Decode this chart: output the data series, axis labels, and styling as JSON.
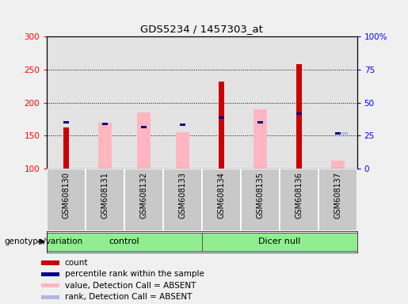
{
  "title": "GDS5234 / 1457303_at",
  "samples": [
    "GSM608130",
    "GSM608131",
    "GSM608132",
    "GSM608133",
    "GSM608134",
    "GSM608135",
    "GSM608136",
    "GSM608137"
  ],
  "ylim_left": [
    100,
    300
  ],
  "ylim_right": [
    0,
    100
  ],
  "yticks_left": [
    100,
    150,
    200,
    250,
    300
  ],
  "yticks_right": [
    0,
    25,
    50,
    75,
    100
  ],
  "ytick_labels_right": [
    "0",
    "25",
    "50",
    "75",
    "100%"
  ],
  "red_bars": [
    163,
    100,
    100,
    100,
    232,
    100,
    258,
    100
  ],
  "pink_bars_top": [
    100,
    170,
    185,
    155,
    100,
    190,
    100,
    112
  ],
  "blue_squares_val": [
    170,
    168,
    163,
    167,
    177,
    170,
    183,
    153
  ],
  "blue_sq_present": [
    true,
    true,
    true,
    true,
    true,
    true,
    true,
    true
  ],
  "lavender_val": [
    null,
    null,
    null,
    null,
    null,
    null,
    null,
    153
  ],
  "control_indices": [
    0,
    1,
    2,
    3
  ],
  "dicer_indices": [
    4,
    5,
    6,
    7
  ],
  "group_label": "genotype/variation",
  "legend_items": [
    {
      "color": "#cc0000",
      "label": "count"
    },
    {
      "color": "#00008b",
      "label": "percentile rank within the sample"
    },
    {
      "color": "#ffb6c1",
      "label": "value, Detection Call = ABSENT"
    },
    {
      "color": "#b0b8e0",
      "label": "rank, Detection Call = ABSENT"
    }
  ],
  "bg_color": "#f0f0f0",
  "plot_bg": "#ffffff",
  "gray_col_color": "#c8c8c8",
  "green_group_color": "#90ee90"
}
